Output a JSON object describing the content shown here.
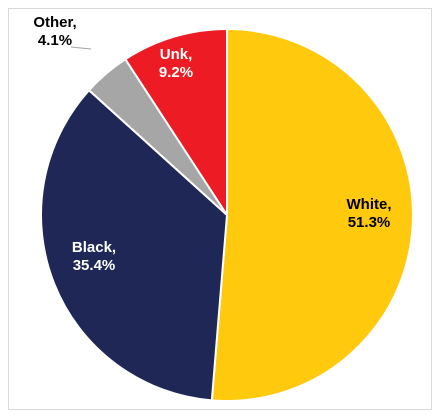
{
  "chart_data": {
    "type": "pie",
    "slices": [
      {
        "label": "White, 51.3%",
        "value": 51.3,
        "color": "#ffc90e",
        "text_color": "#000000"
      },
      {
        "label": "Black, 35.4%",
        "value": 35.4,
        "color": "#1f2756",
        "text_color": "#ffffff"
      },
      {
        "label": "Other, 4.1%",
        "value": 4.1,
        "color": "#a6a6a6",
        "text_color": "#000000"
      },
      {
        "label": "Unk, 9.2%",
        "value": 9.2,
        "color": "#ed1c24",
        "text_color": "#ffffff"
      }
    ],
    "legend": "none",
    "label_style": "category-and-percent"
  }
}
